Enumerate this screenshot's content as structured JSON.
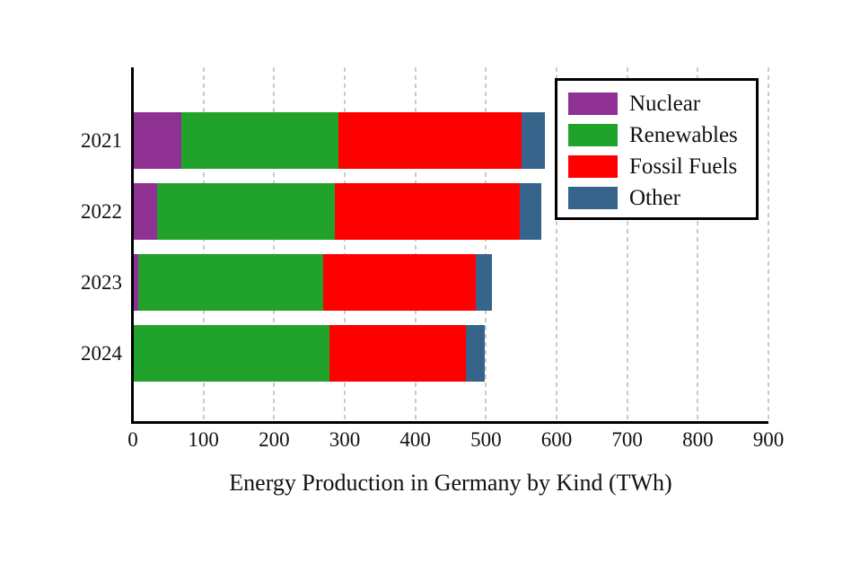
{
  "chart_data": {
    "type": "bar",
    "orientation": "horizontal",
    "stacked": true,
    "xlabel": "Energy Production in Germany by Kind (TWh)",
    "categories": [
      "2021",
      "2022",
      "2023",
      "2024"
    ],
    "series": [
      {
        "name": "Nuclear",
        "color": "#8e3192",
        "values": [
          69,
          34,
          7,
          0
        ]
      },
      {
        "name": "Renewables",
        "color": "#21a32b",
        "values": [
          222,
          252,
          262,
          279
        ]
      },
      {
        "name": "Fossil Fuels",
        "color": "#ff0000",
        "values": [
          260,
          262,
          216,
          192
        ]
      },
      {
        "name": "Other",
        "color": "#36648b",
        "values": [
          33,
          31,
          23,
          27
        ]
      }
    ],
    "x_ticks": [
      0,
      100,
      200,
      300,
      400,
      500,
      600,
      700,
      800,
      900
    ],
    "xlim": [
      0,
      900
    ],
    "grid": "vertical dashed gridlines at every 100",
    "legend_position": "top-right",
    "legend_items": [
      "Nuclear",
      "Renewables",
      "Fossil Fuels",
      "Other"
    ]
  },
  "colors": {
    "nuclear": "#8e3192",
    "renewables": "#21a32b",
    "fossil_fuels": "#ff0000",
    "other": "#36648b",
    "grid": "#cbcbcb",
    "axis": "#000000",
    "text": "#111111",
    "background": "#ffffff"
  }
}
